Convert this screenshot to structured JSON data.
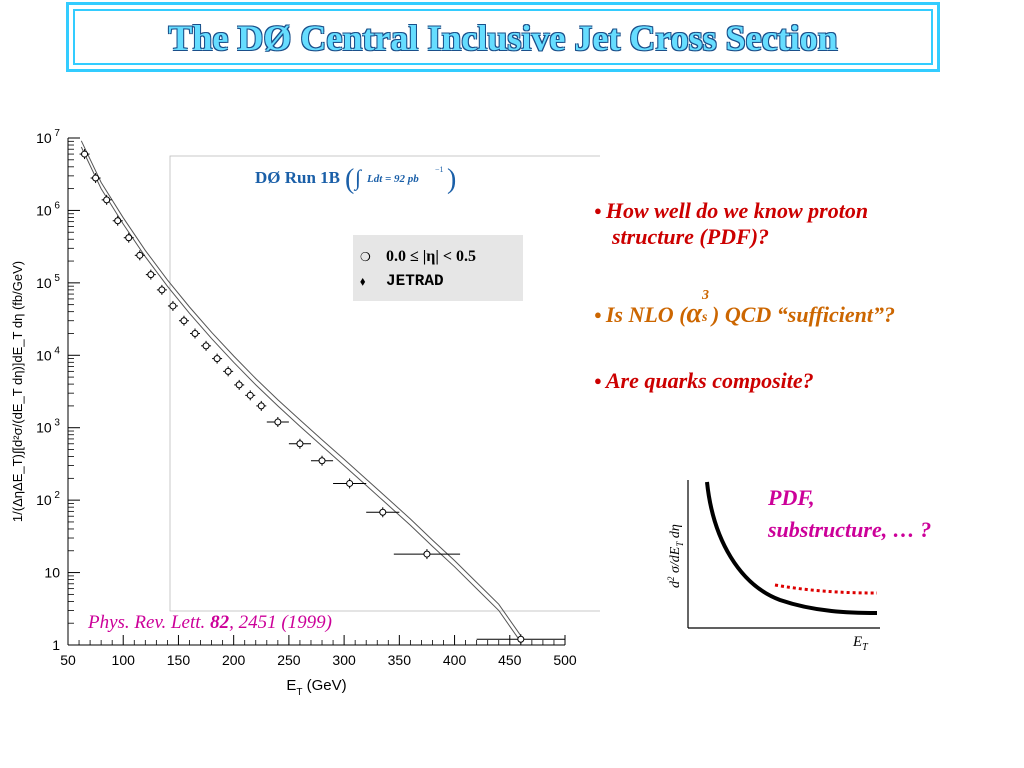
{
  "title": "The DØ Central Inclusive Jet Cross Section",
  "run_label": "DØ Run 1B",
  "lumi_label": "Ldt = 92 pb",
  "lumi_exp": "−1",
  "reference": {
    "journal": "Phys. Rev. Lett. ",
    "volume": "82",
    "rest": ", 2451 (1999)"
  },
  "bullets": [
    {
      "text": "How well do we know proton",
      "text2": "structure (PDF)?",
      "color": "#cc0000"
    },
    {
      "pre": "Is NLO (",
      "alpha": "α",
      "sup": "3",
      "sub": "s",
      "post": ") QCD “sufficient”?",
      "color": "#cc6600"
    },
    {
      "text": "Are quarks composite?",
      "color": "#cc0000"
    }
  ],
  "sketch": {
    "ylabel_d2": "d",
    "ylabel_sup": "2",
    "ylabel_rest": " σ/dE",
    "ylabel_sub": "T",
    "ylabel_end": " dη",
    "xlabel": "E",
    "xlabel_sub": "T",
    "note_line1": "PDF,",
    "note_line2": "substructure, … ?"
  },
  "chart_data": {
    "type": "scatter",
    "xlabel": "E_T (GeV)",
    "ylabel": "1/(ΔηΔE_T)∫[d²σ/(dE_T dη)]dE_T dη (fb/GeV)",
    "xlim": [
      50,
      500
    ],
    "ylim": [
      1,
      10000000
    ],
    "yscale": "log",
    "xticks": [
      50,
      100,
      150,
      200,
      250,
      300,
      350,
      400,
      450,
      500
    ],
    "yticks": [
      {
        "base": "10",
        "exp": "7",
        "value": 10000000
      },
      {
        "base": "10",
        "exp": "6",
        "value": 1000000
      },
      {
        "base": "10",
        "exp": "5",
        "value": 100000
      },
      {
        "base": "10",
        "exp": "4",
        "value": 10000
      },
      {
        "base": "10",
        "exp": "3",
        "value": 1000
      },
      {
        "base": "10",
        "exp": "2",
        "value": 100
      },
      {
        "base": "10",
        "exp": "",
        "value": 10
      },
      {
        "base": "1",
        "exp": "",
        "value": 1
      }
    ],
    "legend": [
      {
        "marker": "❍",
        "label": "0.0 ≤ |η| < 0.5"
      },
      {
        "marker": "⬧",
        "label": "JETRAD"
      }
    ],
    "legend_position": "top-right",
    "series": [
      {
        "name": "0.0 ≤ |η| < 0.5",
        "x": [
          65,
          75,
          85,
          95,
          105,
          115,
          125,
          135,
          145,
          155,
          165,
          175,
          185,
          195,
          205,
          215,
          225,
          240,
          260,
          280,
          305,
          335,
          375,
          460
        ],
        "y": [
          6000000,
          2800000,
          1400000,
          720000,
          420000,
          240000,
          130000,
          80000,
          48000,
          30000,
          20000,
          13500,
          9000,
          6000,
          3900,
          2800,
          2000,
          1200,
          600,
          350,
          170,
          68,
          18,
          1.2
        ],
        "xerr": [
          0,
          0,
          0,
          0,
          0,
          0,
          0,
          0,
          0,
          0,
          0,
          0,
          0,
          0,
          0,
          0,
          0,
          10,
          10,
          10,
          15,
          15,
          30,
          40
        ]
      },
      {
        "name": "JETRAD",
        "x": [
          62,
          80,
          100,
          120,
          140,
          160,
          180,
          200,
          220,
          240,
          260,
          280,
          300,
          320,
          340,
          360,
          380,
          400,
          420,
          440,
          460
        ],
        "y": [
          7500000,
          2000000,
          650000,
          230000,
          90000,
          38000,
          17000,
          8000,
          3900,
          2000,
          1050,
          560,
          300,
          160,
          85,
          45,
          23,
          12,
          6,
          3,
          1.1
        ]
      }
    ]
  }
}
